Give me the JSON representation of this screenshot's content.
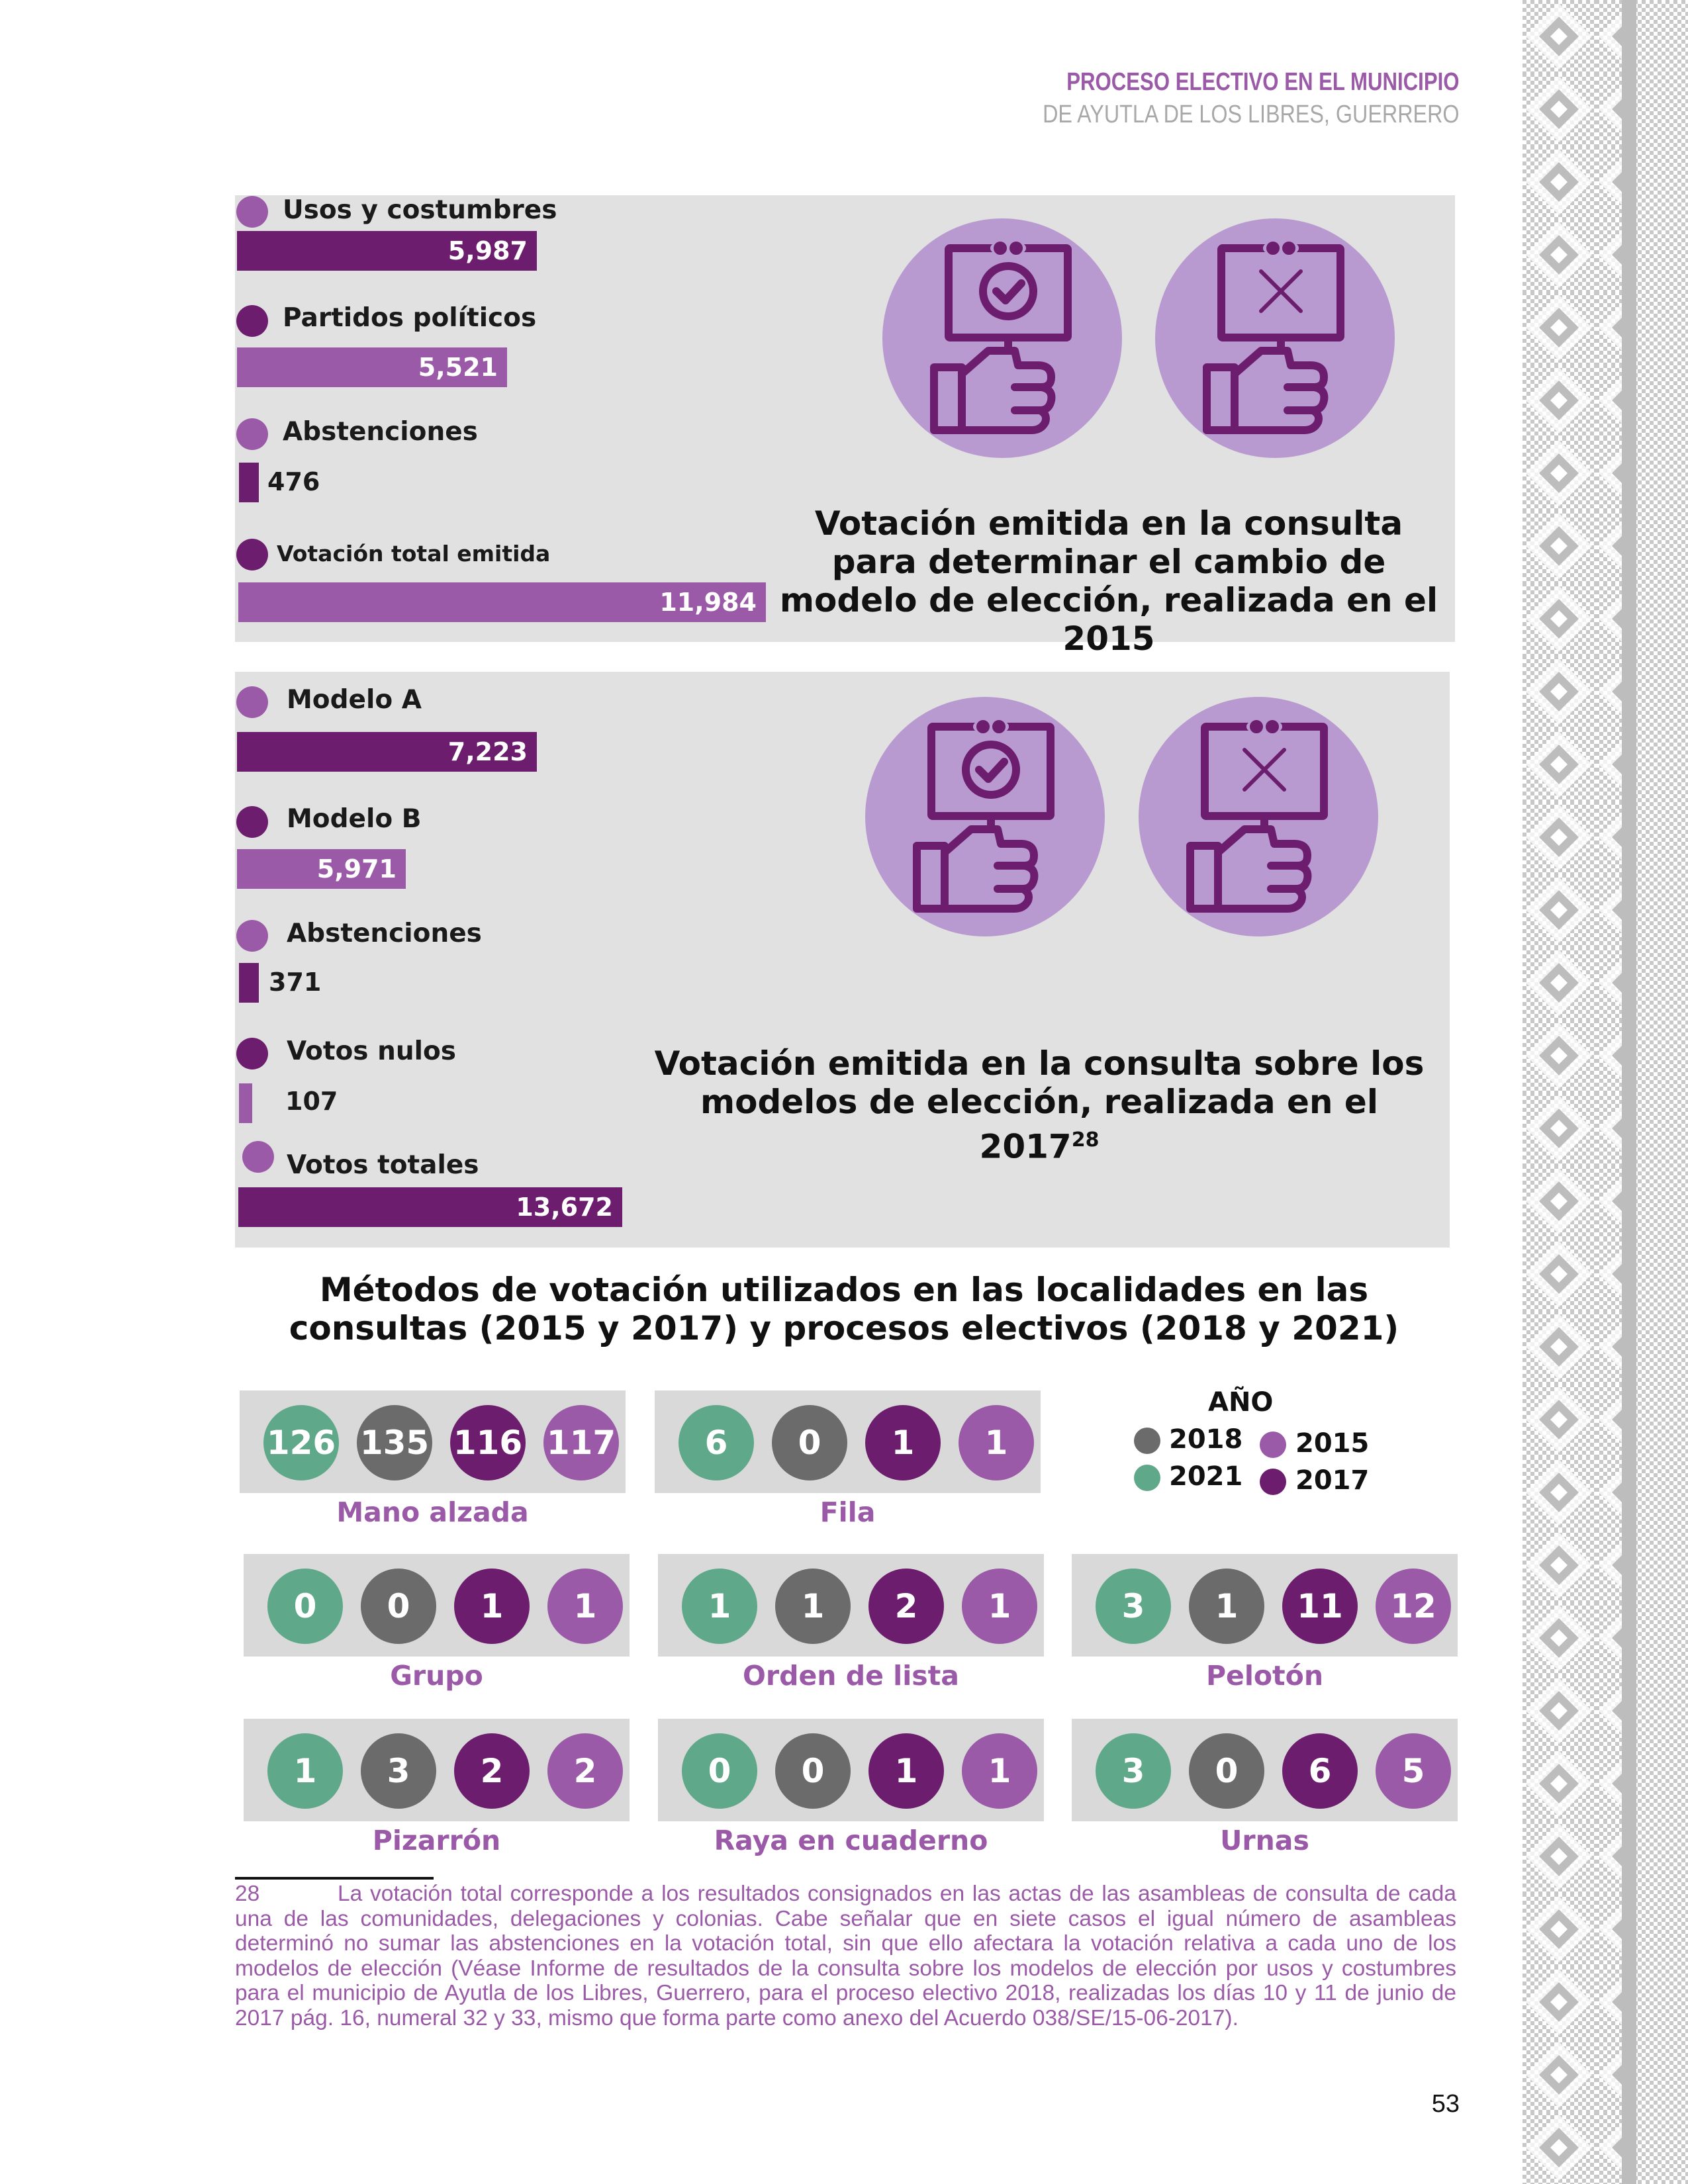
{
  "header": {
    "line1": "PROCESO ELECTIVO EN EL MUNICIPIO",
    "line2": "DE AYUTLA DE LOS LIBRES, GUERRERO"
  },
  "colors": {
    "dark_purple": "#6c1d6e",
    "light_purple": "#9b5aa8",
    "green": "#5fa98a",
    "gray": "#6b6b6b",
    "panel": "#e1e1e1",
    "icon_circle": "#b89ad0"
  },
  "consulta_2015": {
    "title": "Votación emitida en la consulta para determinar el cambio de modelo de elección, realizada en el 2015",
    "items": [
      {
        "label": "Usos y costumbres",
        "value": "5,987",
        "amount": 5987
      },
      {
        "label": "Partidos políticos",
        "value": "5,521",
        "amount": 5521
      },
      {
        "label": "Abstenciones",
        "value": "476",
        "amount": 476
      },
      {
        "label": "Votación total emitida",
        "value": "11,984",
        "amount": 11984
      }
    ],
    "icons": [
      "approve-vote-icon",
      "reject-vote-icon"
    ]
  },
  "consulta_2017": {
    "title": "Votación emitida en la consulta sobre los modelos de elección, realizada en el 2017",
    "footnote_ref": "28",
    "items": [
      {
        "label": "Modelo A",
        "value": "7,223",
        "amount": 7223
      },
      {
        "label": "Modelo B",
        "value": "5,971",
        "amount": 5971
      },
      {
        "label": "Abstenciones",
        "value": "371",
        "amount": 371
      },
      {
        "label": "Votos nulos",
        "value": "107",
        "amount": 107
      },
      {
        "label": "Votos totales",
        "value": "13,672",
        "amount": 13672
      }
    ],
    "icons": [
      "approve-vote-icon",
      "reject-vote-icon"
    ]
  },
  "metodos": {
    "title": "Métodos de votación utilizados en las localidades en las consultas (2015 y 2017) y procesos electivos (2018 y 2021)",
    "legend": {
      "title": "AÑO",
      "items": [
        {
          "year": "2018",
          "color": "#6b6b6b"
        },
        {
          "year": "2021",
          "color": "#5fa98a"
        },
        {
          "year": "2015",
          "color": "#9b5aa8"
        },
        {
          "year": "2017",
          "color": "#6c1d6e"
        }
      ]
    },
    "order": [
      "2021",
      "2018",
      "2017",
      "2015"
    ],
    "methods": [
      {
        "label": "Mano alzada",
        "values": [
          "126",
          "135",
          "116",
          "117"
        ]
      },
      {
        "label": "Fila",
        "values": [
          "6",
          "0",
          "1",
          "1"
        ]
      },
      {
        "label": "Grupo",
        "values": [
          "0",
          "0",
          "1",
          "1"
        ]
      },
      {
        "label": "Orden de lista",
        "values": [
          "1",
          "1",
          "2",
          "1"
        ]
      },
      {
        "label": "Pelotón",
        "values": [
          "3",
          "1",
          "11",
          "12"
        ]
      },
      {
        "label": "Pizarrón",
        "values": [
          "1",
          "3",
          "2",
          "2"
        ]
      },
      {
        "label": "Raya en cuaderno",
        "values": [
          "0",
          "0",
          "1",
          "1"
        ]
      },
      {
        "label": "Urnas",
        "values": [
          "3",
          "0",
          "6",
          "5"
        ]
      }
    ]
  },
  "footnote": {
    "number": "28",
    "text": "La votación total corresponde a los resultados consignados en las actas de las asambleas de consulta de cada una de las comunidades, delegaciones y colonias. Cabe señalar que en siete casos el igual número de asambleas determinó no sumar las abstenciones en la votación total, sin que ello afectara la votación relativa a cada uno de los modelos de elección (Véase Informe de resultados de la consulta sobre los modelos de elección por usos y costumbres para el municipio de Ayutla de los Libres, Guerrero, para el proceso electivo 2018, realizadas los días 10 y 11 de junio de 2017 pág. 16, numeral 32 y 33, mismo que forma parte como anexo del Acuerdo 038/SE/15-06-2017)."
  },
  "page_number": "53"
}
